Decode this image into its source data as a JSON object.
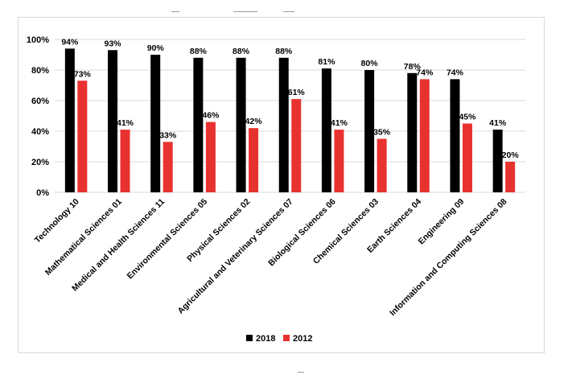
{
  "chart_data": {
    "type": "bar",
    "categories": [
      "Technology 10",
      "Mathematical Sciences 01",
      "Medical and Health Sciences 11",
      "Environmental Sciences 05",
      "Physical Sciences 02",
      "Agricultural and Veterinary Sciences 07",
      "Biological Sciences 06",
      "Chemical Sciences 03",
      "Earth Sciences 04",
      "Engineering 09",
      "Information and Computing Sciences 08"
    ],
    "series": [
      {
        "name": "2018",
        "color": "#000000",
        "values": [
          94,
          93,
          90,
          88,
          88,
          88,
          81,
          80,
          78,
          74,
          41
        ],
        "labels": [
          "94%",
          "93%",
          "90%",
          "88%",
          "88%",
          "88%",
          "81%",
          "80%",
          "78%",
          "74%",
          "41%"
        ]
      },
      {
        "name": "2012",
        "color": "#e8322f",
        "values": [
          73,
          41,
          33,
          46,
          42,
          61,
          41,
          35,
          74,
          45,
          20
        ],
        "labels": [
          "73%",
          "41%",
          "33%",
          "46%",
          "42%",
          "61%",
          "41%",
          "35%",
          "74%",
          "45%",
          "20%"
        ]
      }
    ],
    "ylim": [
      0,
      100
    ],
    "yticks": [
      0,
      20,
      40,
      60,
      80,
      100
    ],
    "ytick_labels": [
      "0%",
      "20%",
      "40%",
      "60%",
      "80%",
      "100%"
    ],
    "grid": true,
    "legend_position": "bottom",
    "title": "",
    "xlabel": "",
    "ylabel": ""
  }
}
